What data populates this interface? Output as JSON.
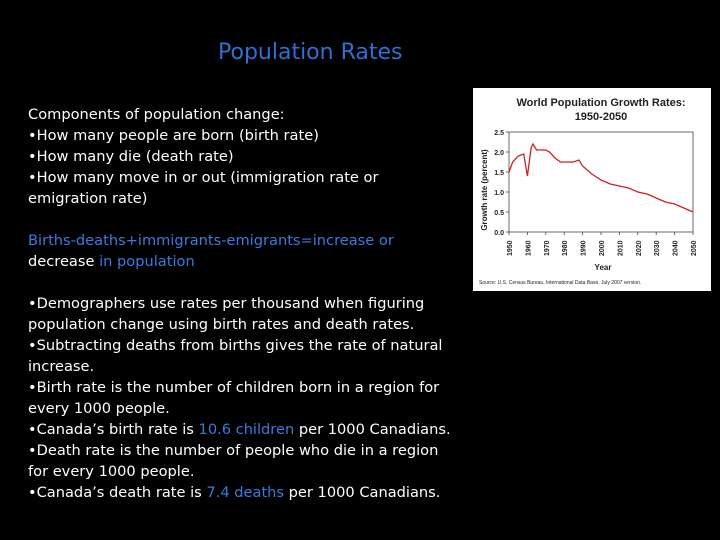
{
  "slide": {
    "title": "Population Rates",
    "components_heading": "Components of population change:",
    "components": [
      "•How many people are born (birth rate)",
      "•How many die (death rate)",
      "•How many move in or out (immigration rate or emigration rate)"
    ],
    "equation": {
      "part1": "Births-deaths+immigrants-emigrants=increase",
      "or": " or ",
      "part2": "decrease",
      "in_population": " in population"
    },
    "b1": "•Demographers use rates per thousand when figuring population change using birth rates and death rates.",
    "b2": "•Subtracting deaths from births gives the rate of natural increase.",
    "b3": "•Birth rate is the number of children born in a region for every 1000 people.",
    "b4_pre": "•Canada’s birth rate is ",
    "b4_hl": "10.6 children",
    "b4_post": " per 1000 Canadians.",
    "b5": "•Death rate is the number of people who die in a region for every 1000 people.",
    "b6_pre": "•Canada’s death rate is ",
    "b6_hl": "7.4 deaths",
    "b6_post": " per 1000 Canadians."
  },
  "colors": {
    "title": "#2f6fd6",
    "highlight": "#3a7be0",
    "line": "#d02020"
  },
  "chart_data": {
    "type": "line",
    "title": "World Population Growth Rates:",
    "subtitle": "1950-2050",
    "xlabel": "Year",
    "ylabel": "Growth rate (percent)",
    "source": "Source: U.S. Census Bureau, International Data Base, July 2007 version.",
    "xlim": [
      1950,
      2050
    ],
    "ylim": [
      0,
      2.5
    ],
    "xticks": [
      "1950",
      "1960",
      "1970",
      "1980",
      "1990",
      "2000",
      "2010",
      "2020",
      "2030",
      "2040",
      "2050"
    ],
    "yticks": [
      "0.0",
      "0.5",
      "1.0",
      "1.5",
      "2.0",
      "2.5"
    ],
    "series": [
      {
        "name": "Growth rate",
        "x": [
          1950,
          1952,
          1955,
          1958,
          1960,
          1962,
          1963,
          1965,
          1968,
          1970,
          1972,
          1975,
          1978,
          1980,
          1985,
          1988,
          1990,
          1995,
          2000,
          2005,
          2010,
          2015,
          2020,
          2025,
          2030,
          2035,
          2040,
          2045,
          2050
        ],
        "y": [
          1.5,
          1.75,
          1.9,
          1.95,
          1.4,
          2.1,
          2.2,
          2.05,
          2.05,
          2.05,
          2.0,
          1.85,
          1.75,
          1.75,
          1.75,
          1.8,
          1.65,
          1.45,
          1.3,
          1.2,
          1.15,
          1.1,
          1.0,
          0.95,
          0.85,
          0.75,
          0.7,
          0.6,
          0.5
        ]
      }
    ]
  }
}
